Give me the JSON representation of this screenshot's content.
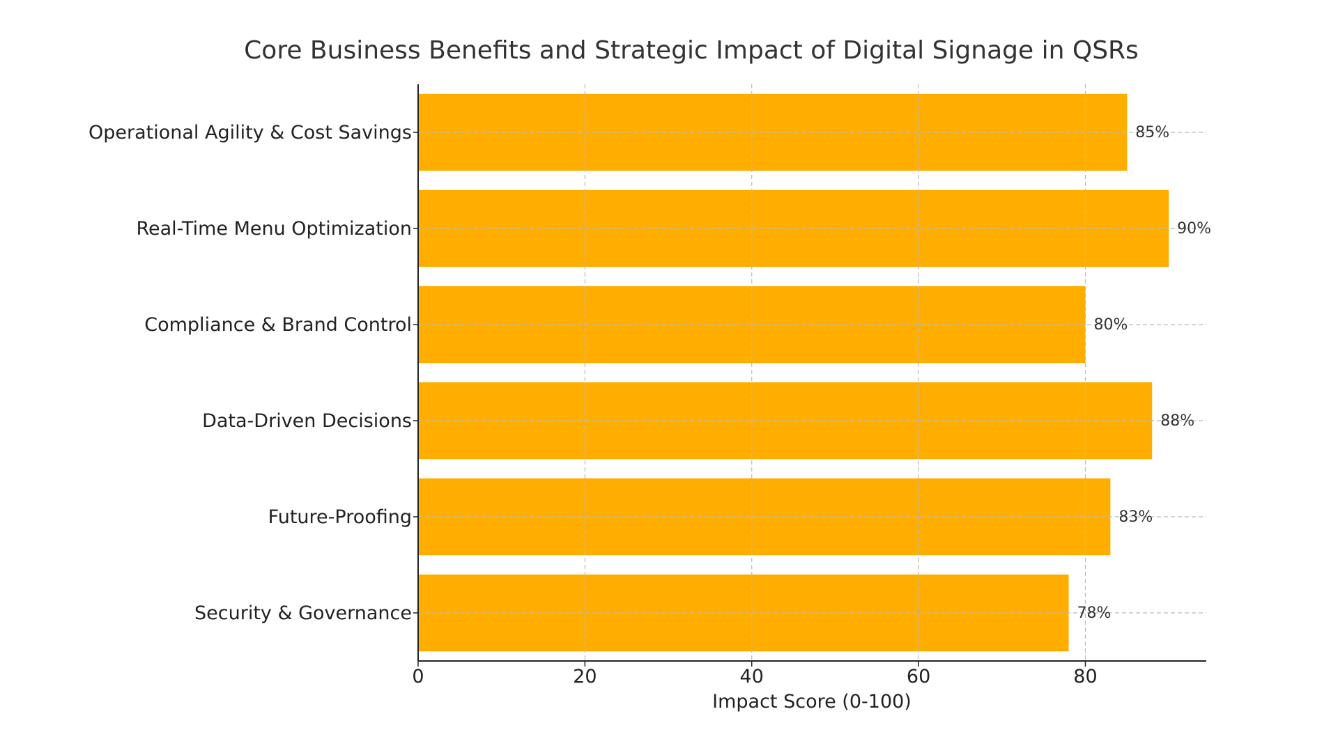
{
  "chart_data": {
    "type": "bar",
    "orientation": "horizontal",
    "title": "Core Business Benefits and Strategic Impact of Digital Signage in QSRs",
    "xlabel": "Impact Score (0-100)",
    "ylabel": "",
    "categories": [
      "Operational Agility & Cost Savings",
      "Real-Time Menu Optimization",
      "Compliance & Brand Control",
      "Data-Driven Decisions",
      "Future-Proofing",
      "Security & Governance"
    ],
    "values": [
      85,
      90,
      80,
      88,
      83,
      78
    ],
    "data_labels": [
      "85%",
      "90%",
      "80%",
      "88%",
      "83%",
      "78%"
    ],
    "xticks": [
      "0",
      "20",
      "40",
      "60",
      "80"
    ],
    "xlim": [
      0,
      94.5
    ],
    "grid": true,
    "bar_color": "#FFAE00"
  }
}
